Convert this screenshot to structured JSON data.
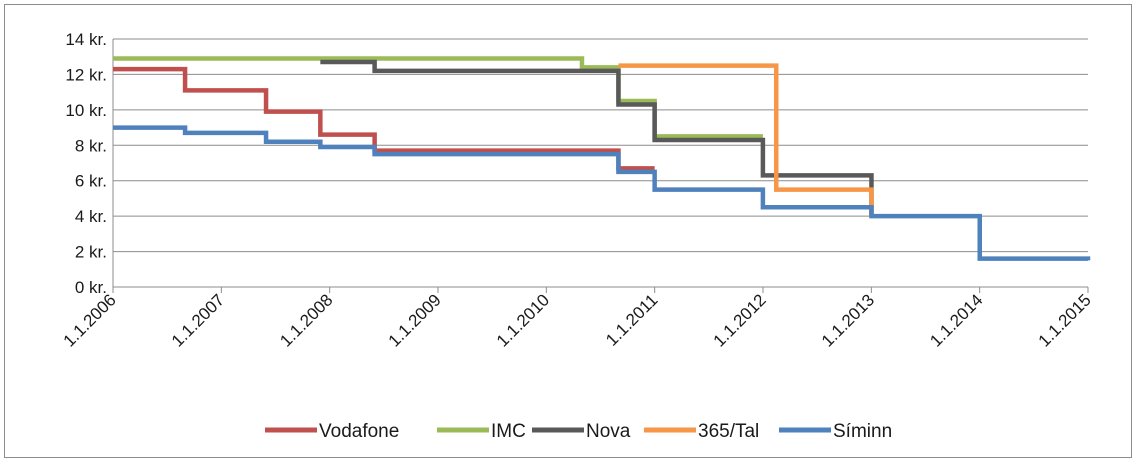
{
  "chart_data": {
    "type": "line",
    "title": "",
    "xlabel": "",
    "ylabel": "",
    "ylim": [
      0,
      14
    ],
    "yticks": [
      0,
      2,
      4,
      6,
      8,
      10,
      12,
      14
    ],
    "ytick_labels": [
      "0 kr.",
      "2 kr.",
      "4 kr.",
      "6 kr.",
      "8 kr.",
      "10 kr.",
      "12 kr.",
      "14 kr."
    ],
    "xlim": [
      "2006-01-01",
      "2015-01-01"
    ],
    "xtick_labels": [
      "1.1.2006",
      "1.1.2007",
      "1.1.2008",
      "1.1.2009",
      "1.1.2010",
      "1.1.2011",
      "1.1.2012",
      "1.1.2013",
      "1.1.2014",
      "1.1.2015"
    ],
    "grid": true,
    "legend_position": "bottom",
    "step_style": "post",
    "series": [
      {
        "name": "Vodafone",
        "color": "#c0504d",
        "points": [
          [
            "2006-01-01",
            12.3
          ],
          [
            "2006-09-01",
            11.1
          ],
          [
            "2007-06-01",
            9.9
          ],
          [
            "2007-12-01",
            8.6
          ],
          [
            "2008-06-01",
            7.7
          ],
          [
            "2010-09-01",
            6.7
          ],
          [
            "2011-01-01",
            6.7
          ]
        ]
      },
      {
        "name": "IMC",
        "color": "#9bbb59",
        "points": [
          [
            "2006-01-01",
            12.9
          ],
          [
            "2010-05-01",
            12.4
          ],
          [
            "2010-09-01",
            10.5
          ],
          [
            "2011-01-01",
            8.5
          ],
          [
            "2012-01-01",
            8.5
          ]
        ]
      },
      {
        "name": "Nova",
        "color": "#595959",
        "points": [
          [
            "2007-12-01",
            12.7
          ],
          [
            "2008-06-01",
            12.2
          ],
          [
            "2010-09-01",
            10.3
          ],
          [
            "2011-01-01",
            8.3
          ],
          [
            "2012-01-01",
            6.3
          ],
          [
            "2013-01-01",
            4.0
          ]
        ]
      },
      {
        "name": "365/Tal",
        "color": "#f79646",
        "points": [
          [
            "2010-09-01",
            12.5
          ],
          [
            "2012-01-01",
            12.5
          ],
          [
            "2012-02-15",
            5.5
          ],
          [
            "2013-01-01",
            5.5
          ],
          [
            "2013-01-01",
            4.0
          ]
        ]
      },
      {
        "name": "Síminn",
        "color": "#4f81bd",
        "points": [
          [
            "2006-01-01",
            9.0
          ],
          [
            "2006-09-01",
            8.7
          ],
          [
            "2007-06-01",
            8.2
          ],
          [
            "2007-12-01",
            7.9
          ],
          [
            "2008-06-01",
            7.5
          ],
          [
            "2010-09-01",
            6.5
          ],
          [
            "2011-01-01",
            5.5
          ],
          [
            "2012-01-01",
            4.5
          ],
          [
            "2013-01-01",
            4.0
          ],
          [
            "2014-01-01",
            1.6
          ],
          [
            "2015-01-01",
            1.5
          ]
        ]
      }
    ]
  }
}
